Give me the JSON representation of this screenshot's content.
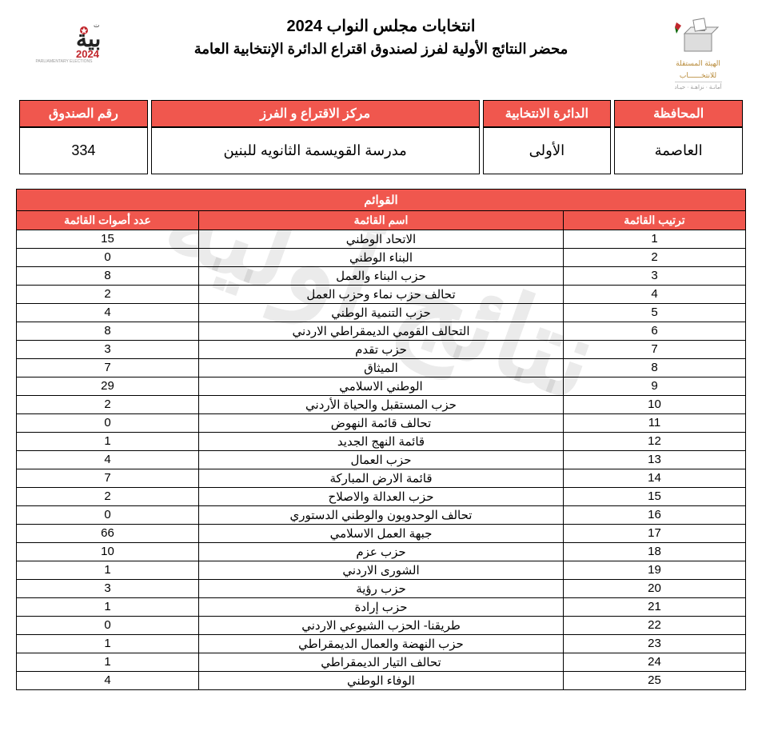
{
  "colors": {
    "header_bg": "#f0574e",
    "header_fg": "#ffffff",
    "border": "#000000",
    "text": "#000000",
    "watermark": "rgba(0,0,0,0.08)",
    "logo_label": "#b88b3a"
  },
  "watermark_text": "نتائج أولية",
  "header": {
    "title1": "انتخابات مجلس النواب 2024",
    "title2": "محضر النتائج الأولية لفرز لصندوق اقتراع الدائرة الإنتخابية العامة",
    "logo_right_label_line1": "الهيئة المستقلة",
    "logo_right_label_line2": "للانتخــــــاب",
    "logo_right_sub": "أمانـة · نزاهـة · حيـاد",
    "logo_left_label": "PARLIAMENTARY ELECTIONS",
    "logo_left_year": "2024",
    "logo_left_word": "نيابية",
    "logo_left_small": "انتخابات"
  },
  "info": {
    "headers": {
      "governorate": "المحافظة",
      "district": "الدائرة الانتخابية",
      "center": "مركز الاقتراع و الفرز",
      "box": "رقم الصندوق"
    },
    "values": {
      "governorate": "العاصمة",
      "district": "الأولى",
      "center": "مدرسة القويسمة الثانويه للبنين",
      "box": "334"
    }
  },
  "lists": {
    "main_header": "القوائم",
    "sub_headers": {
      "rank": "ترتيب القائمة",
      "name": "اسم القائمة",
      "votes": "عدد أصوات القائمة"
    },
    "rows": [
      {
        "rank": "1",
        "name": "الاتحاد الوطني",
        "votes": "15"
      },
      {
        "rank": "2",
        "name": "البناء الوطني",
        "votes": "0"
      },
      {
        "rank": "3",
        "name": "حزب البناء والعمل",
        "votes": "8"
      },
      {
        "rank": "4",
        "name": "تحالف حزب نماء وحزب العمل",
        "votes": "2"
      },
      {
        "rank": "5",
        "name": "حزب التنمية الوطني",
        "votes": "4"
      },
      {
        "rank": "6",
        "name": "التحالف القومي الديمقراطي الاردني",
        "votes": "8"
      },
      {
        "rank": "7",
        "name": "حزب تقدم",
        "votes": "3"
      },
      {
        "rank": "8",
        "name": "الميثاق",
        "votes": "7"
      },
      {
        "rank": "9",
        "name": "الوطني الاسلامي",
        "votes": "29"
      },
      {
        "rank": "10",
        "name": "حزب المستقبل والحياة الأردني",
        "votes": "2"
      },
      {
        "rank": "11",
        "name": "تحالف قائمة النهوض",
        "votes": "0"
      },
      {
        "rank": "12",
        "name": "قائمة النهج الجديد",
        "votes": "1"
      },
      {
        "rank": "13",
        "name": "حزب العمال",
        "votes": "4"
      },
      {
        "rank": "14",
        "name": "قائمة الارض المباركة",
        "votes": "7"
      },
      {
        "rank": "15",
        "name": "حزب العدالة والاصلاح",
        "votes": "2"
      },
      {
        "rank": "16",
        "name": "تحالف الوحدويون والوطني الدستوري",
        "votes": "0"
      },
      {
        "rank": "17",
        "name": "جبهة العمل الاسلامي",
        "votes": "66"
      },
      {
        "rank": "18",
        "name": "حزب عزم",
        "votes": "10"
      },
      {
        "rank": "19",
        "name": "الشورى الاردني",
        "votes": "1"
      },
      {
        "rank": "20",
        "name": "حزب رؤية",
        "votes": "3"
      },
      {
        "rank": "21",
        "name": "حزب إرادة",
        "votes": "1"
      },
      {
        "rank": "22",
        "name": "طريقنا- الحزب الشيوعي الاردني",
        "votes": "0"
      },
      {
        "rank": "23",
        "name": "حزب النهضة والعمال الديمقراطي",
        "votes": "1"
      },
      {
        "rank": "24",
        "name": "تحالف التيار الديمقراطي",
        "votes": "1"
      },
      {
        "rank": "25",
        "name": "الوفاء الوطني",
        "votes": "4"
      }
    ]
  }
}
